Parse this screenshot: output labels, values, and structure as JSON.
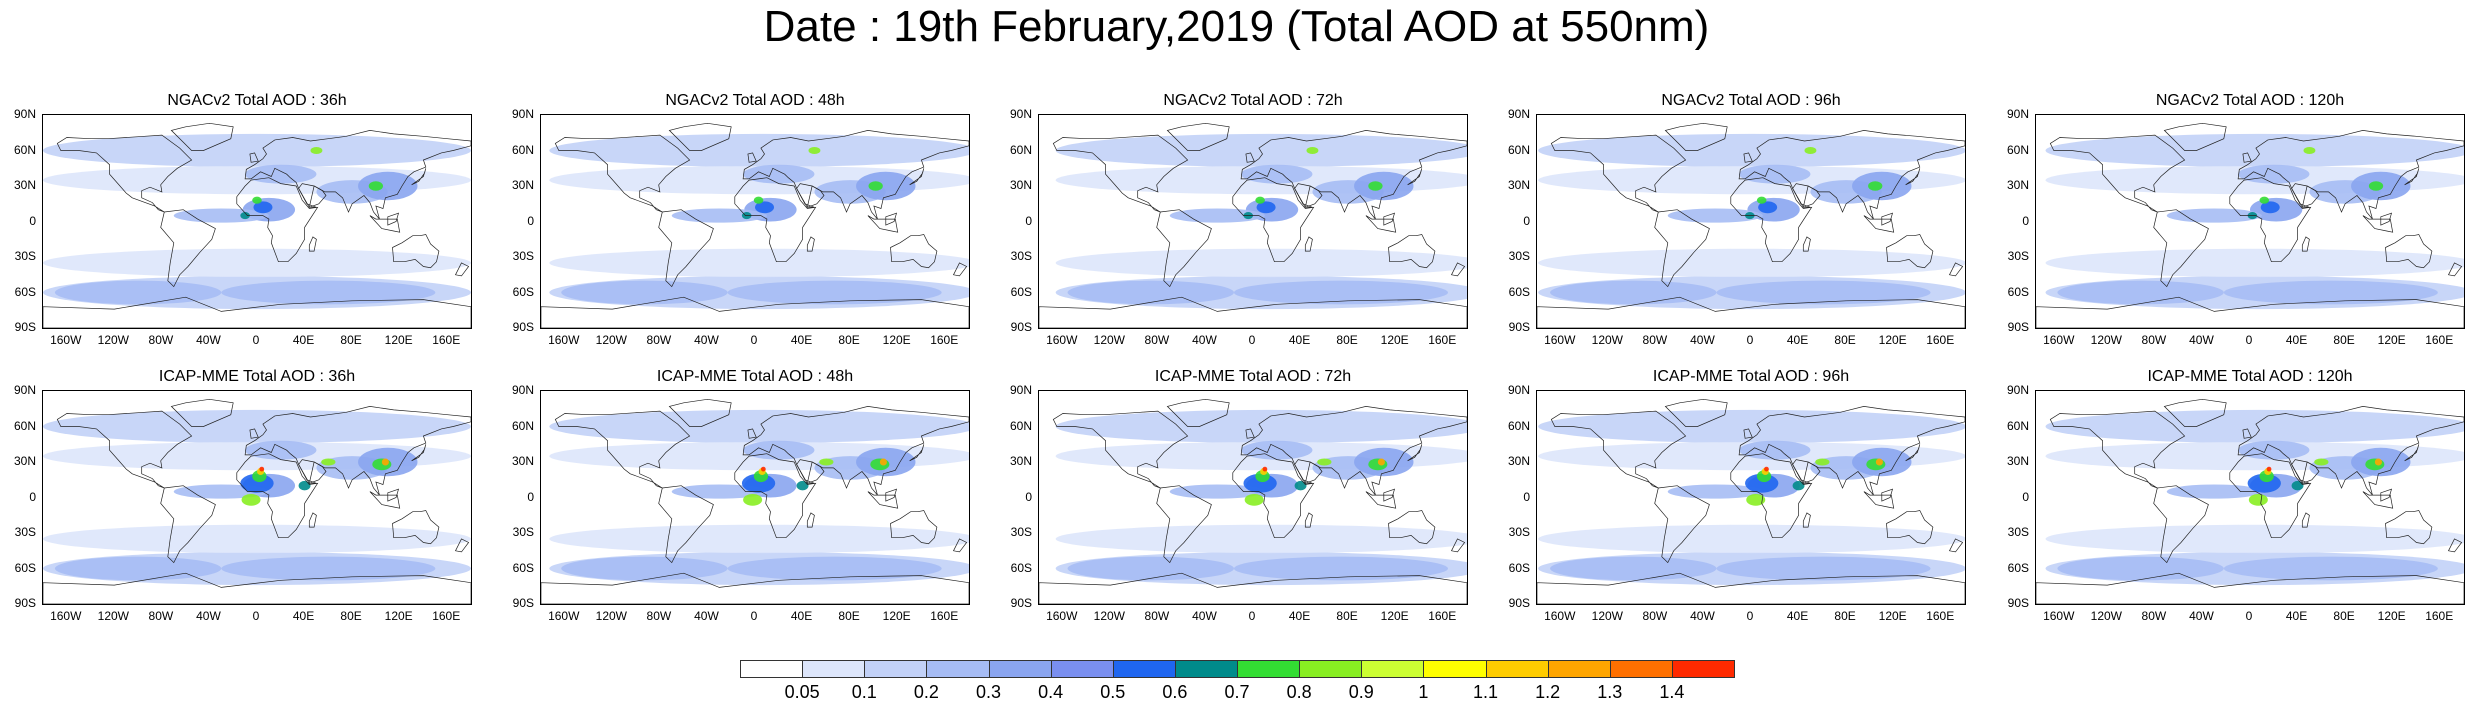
{
  "title": "Date : 19th February,2019 (Total AOD at 550nm)",
  "lat_labels": [
    "90N",
    "60N",
    "30N",
    "0",
    "30S",
    "60S",
    "90S"
  ],
  "lon_labels": [
    "160W",
    "120W",
    "80W",
    "40W",
    "0",
    "40E",
    "80E",
    "120E",
    "160E"
  ],
  "rows": [
    {
      "model": "NGACv2",
      "panels": [
        {
          "title": "NGACv2 Total AOD : 36h"
        },
        {
          "title": "NGACv2 Total AOD : 48h"
        },
        {
          "title": "NGACv2 Total AOD : 72h"
        },
        {
          "title": "NGACv2 Total AOD : 96h"
        },
        {
          "title": "NGACv2 Total AOD : 120h"
        }
      ]
    },
    {
      "model": "ICAP-MME",
      "panels": [
        {
          "title": "ICAP-MME Total AOD : 36h"
        },
        {
          "title": "ICAP-MME Total AOD : 48h"
        },
        {
          "title": "ICAP-MME Total AOD : 72h"
        },
        {
          "title": "ICAP-MME Total AOD : 96h"
        },
        {
          "title": "ICAP-MME Total AOD : 120h"
        }
      ]
    }
  ],
  "colorbar": {
    "labels": [
      "0.05",
      "0.1",
      "0.2",
      "0.3",
      "0.4",
      "0.5",
      "0.6",
      "0.7",
      "0.8",
      "0.9",
      "1",
      "1.1",
      "1.2",
      "1.3",
      "1.4"
    ],
    "colors": [
      "#ffffff",
      "#dde6fb",
      "#c2d1f7",
      "#a6bcf4",
      "#8aa5f0",
      "#7a8ff0",
      "#1f66f0",
      "#008b8b",
      "#33dd33",
      "#88ee22",
      "#ccff33",
      "#ffff00",
      "#ffcc00",
      "#ffa500",
      "#ff7000",
      "#ff2a00"
    ]
  }
}
